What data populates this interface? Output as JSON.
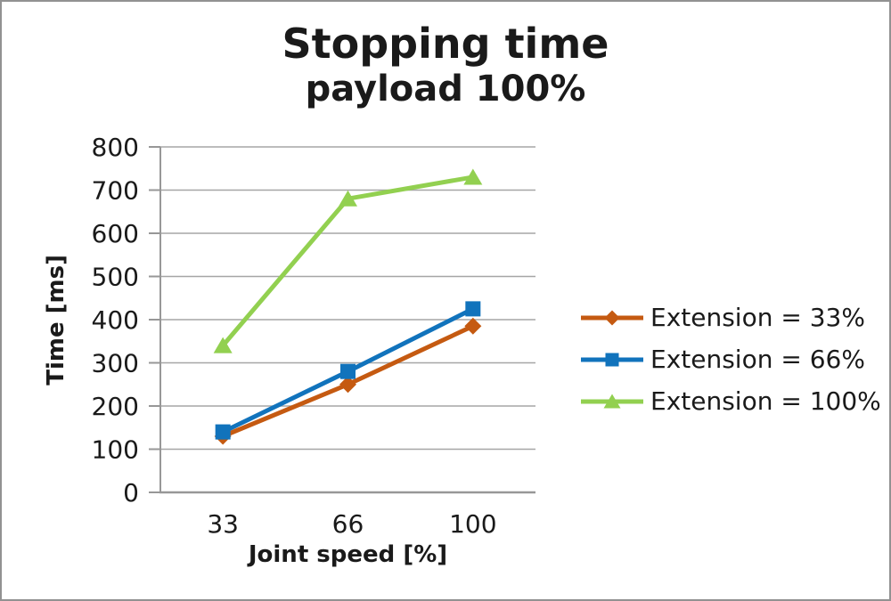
{
  "figure": {
    "border_color": "#929292",
    "background": "#ffffff"
  },
  "chart_data": {
    "type": "line",
    "title": "Stopping time",
    "subtitle": "payload 100%",
    "categories": [
      33,
      66,
      100
    ],
    "xlabel": "Joint speed [%]",
    "ylabel": "Time [ms]",
    "ylim": [
      0,
      800
    ],
    "ytick_step": 100,
    "grid": true,
    "legend_position": "right",
    "series": [
      {
        "name": "Extension = 33%",
        "values": [
          130,
          250,
          385
        ],
        "color": "#C55A11",
        "marker": "diamond"
      },
      {
        "name": "Extension = 66%",
        "values": [
          140,
          280,
          425
        ],
        "color": "#1173BC",
        "marker": "square"
      },
      {
        "name": "Extension = 100%",
        "values": [
          340,
          680,
          730
        ],
        "color": "#92D050",
        "marker": "triangle"
      }
    ],
    "grid_color": "#A6A6A6",
    "axis_color": "#979797",
    "tick_color": "#1a1a1a"
  }
}
